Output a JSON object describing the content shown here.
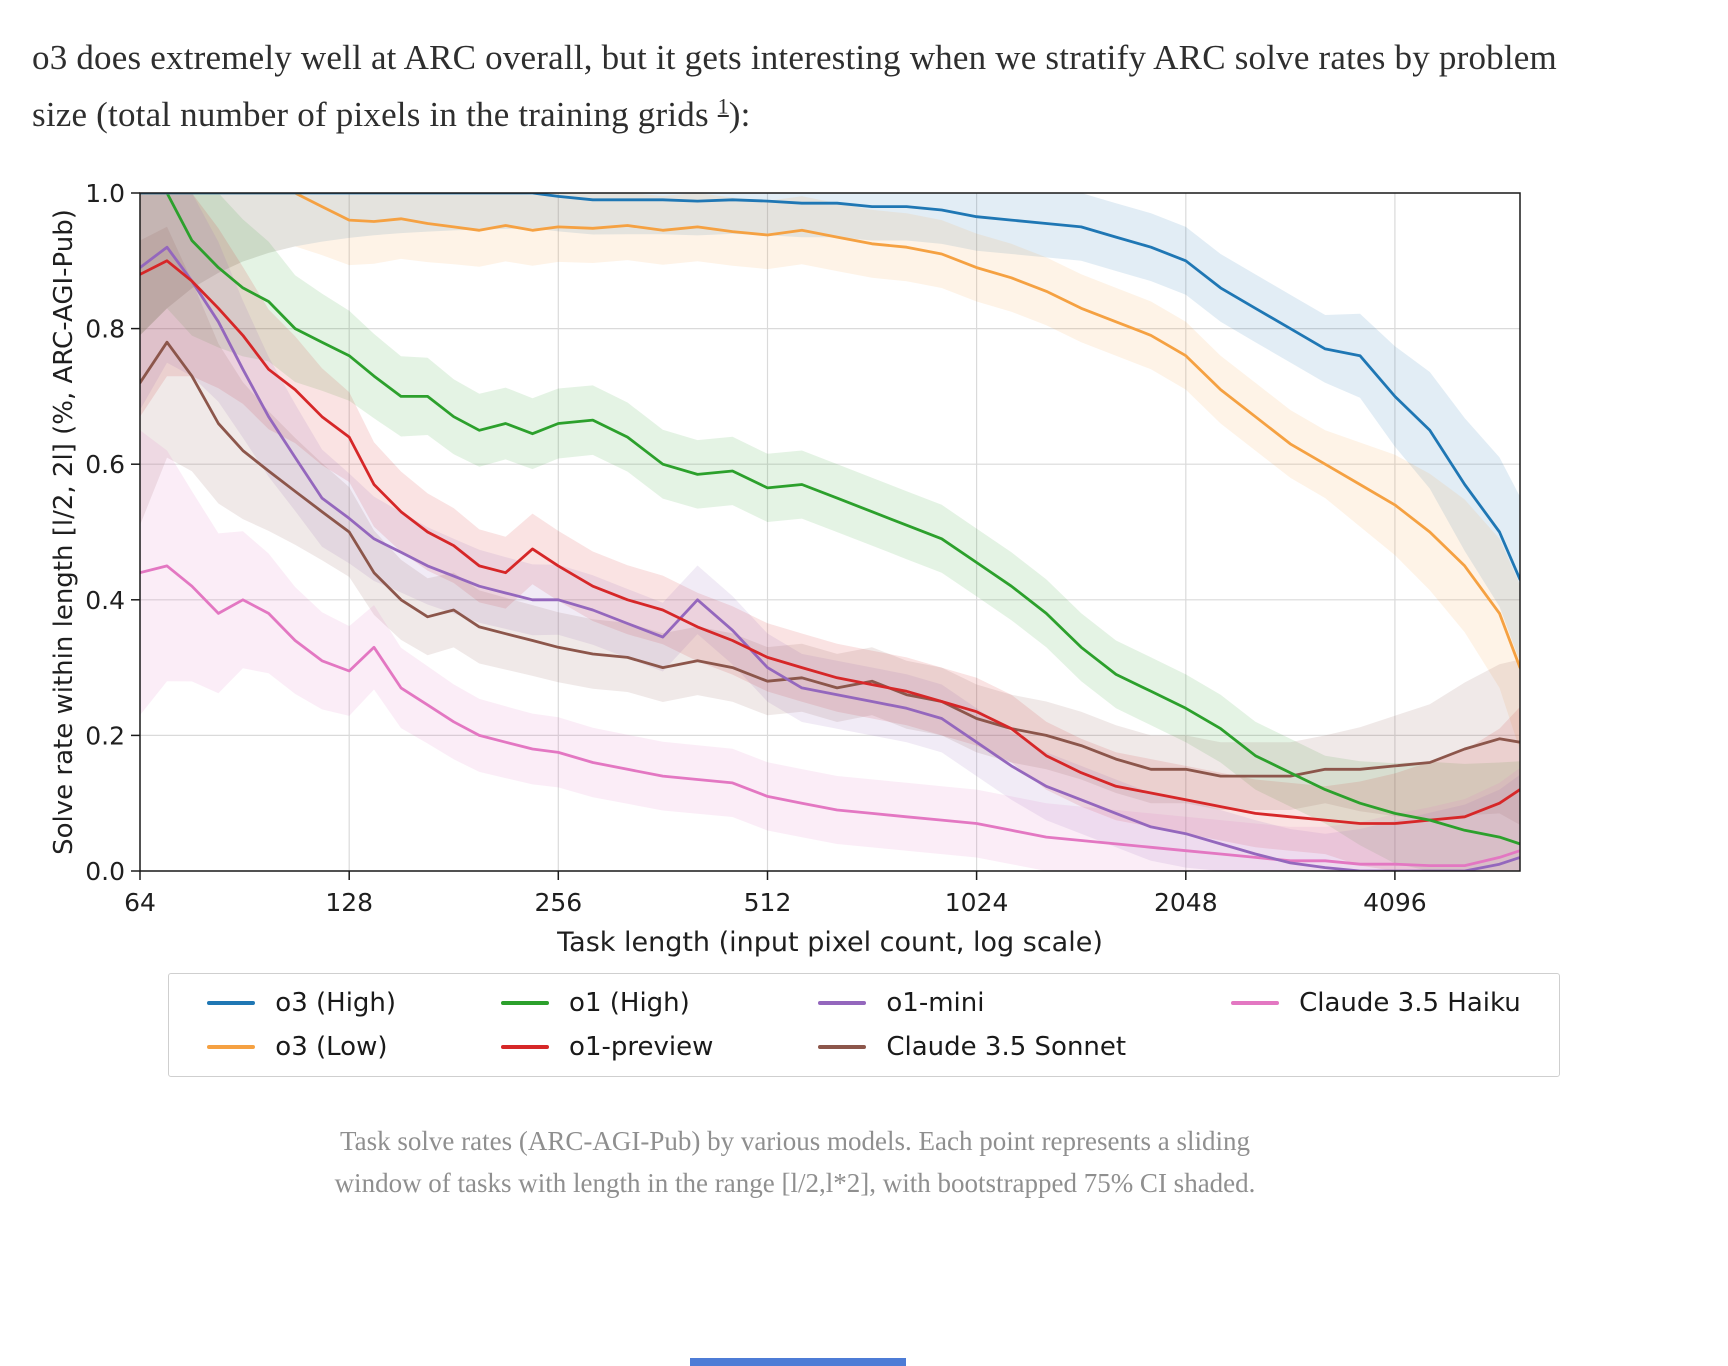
{
  "intro": {
    "text_before": "o3 does extremely well at ARC overall, but it gets interesting when we stratify ARC solve rates by problem size (total number of pixels in the training grids ",
    "footnote_label": "1",
    "text_after": "):"
  },
  "chart_data": {
    "type": "line",
    "title": "",
    "xlabel": "Task length (input pixel count, log scale)",
    "ylabel": "Solve rate within length [l/2, 2l] (%, ARC-AGI-Pub)",
    "x_scale": "log",
    "xlim": [
      64,
      6200
    ],
    "ylim": [
      0.0,
      1.0
    ],
    "xticks": [
      64,
      128,
      256,
      512,
      1024,
      2048,
      4096
    ],
    "yticks": [
      0.0,
      0.2,
      0.4,
      0.6,
      0.8,
      1.0
    ],
    "grid": true,
    "legend_position": "below, 2 rows column-major",
    "ci_note": "bootstrapped 75% CI shaded around each line",
    "x": [
      64,
      70,
      76,
      83,
      90,
      98,
      107,
      117,
      128,
      139,
      152,
      166,
      181,
      197,
      215,
      235,
      256,
      287,
      322,
      362,
      406,
      456,
      512,
      574,
      645,
      724,
      812,
      912,
      1024,
      1149,
      1290,
      1448,
      1625,
      1825,
      2048,
      2299,
      2580,
      2896,
      3251,
      3649,
      4096,
      4598,
      5161,
      5793,
      6200
    ],
    "series": [
      {
        "name": "o3 (High)",
        "color": "#1f77b4",
        "values": [
          1.0,
          1.0,
          1.0,
          1.0,
          1.0,
          1.0,
          1.0,
          1.0,
          1.0,
          1.0,
          1.0,
          1.0,
          1.0,
          1.0,
          1.0,
          1.0,
          0.995,
          0.99,
          0.99,
          0.99,
          0.988,
          0.99,
          0.988,
          0.985,
          0.985,
          0.98,
          0.98,
          0.975,
          0.965,
          0.96,
          0.955,
          0.95,
          0.935,
          0.92,
          0.9,
          0.86,
          0.83,
          0.8,
          0.77,
          0.76,
          0.7,
          0.65,
          0.57,
          0.5,
          0.43
        ]
      },
      {
        "name": "o3 (Low)",
        "color": "#f5a142",
        "values": [
          1.0,
          1.0,
          1.0,
          1.0,
          1.0,
          1.0,
          1.0,
          0.98,
          0.96,
          0.958,
          0.962,
          0.955,
          0.95,
          0.945,
          0.952,
          0.945,
          0.95,
          0.948,
          0.952,
          0.945,
          0.95,
          0.943,
          0.938,
          0.945,
          0.935,
          0.925,
          0.92,
          0.91,
          0.89,
          0.875,
          0.855,
          0.83,
          0.81,
          0.79,
          0.76,
          0.71,
          0.67,
          0.63,
          0.6,
          0.57,
          0.54,
          0.5,
          0.45,
          0.38,
          0.3
        ]
      },
      {
        "name": "o1 (High)",
        "color": "#2ca02c",
        "values": [
          1.0,
          1.0,
          0.93,
          0.89,
          0.86,
          0.84,
          0.8,
          0.78,
          0.76,
          0.73,
          0.7,
          0.7,
          0.67,
          0.65,
          0.66,
          0.645,
          0.66,
          0.665,
          0.64,
          0.6,
          0.585,
          0.59,
          0.565,
          0.57,
          0.55,
          0.53,
          0.51,
          0.49,
          0.455,
          0.42,
          0.38,
          0.33,
          0.29,
          0.265,
          0.24,
          0.21,
          0.17,
          0.145,
          0.12,
          0.1,
          0.085,
          0.075,
          0.06,
          0.05,
          0.04
        ]
      },
      {
        "name": "o1-preview",
        "color": "#d62728",
        "values": [
          0.88,
          0.9,
          0.87,
          0.83,
          0.79,
          0.74,
          0.71,
          0.67,
          0.64,
          0.57,
          0.53,
          0.5,
          0.48,
          0.45,
          0.44,
          0.475,
          0.45,
          0.42,
          0.4,
          0.385,
          0.36,
          0.34,
          0.315,
          0.3,
          0.285,
          0.275,
          0.265,
          0.25,
          0.235,
          0.21,
          0.17,
          0.145,
          0.125,
          0.115,
          0.105,
          0.095,
          0.085,
          0.08,
          0.075,
          0.07,
          0.07,
          0.075,
          0.08,
          0.1,
          0.12
        ]
      },
      {
        "name": "o1-mini",
        "color": "#9467bd",
        "values": [
          0.89,
          0.92,
          0.87,
          0.81,
          0.74,
          0.67,
          0.61,
          0.55,
          0.52,
          0.49,
          0.47,
          0.45,
          0.435,
          0.42,
          0.41,
          0.4,
          0.4,
          0.385,
          0.365,
          0.345,
          0.4,
          0.355,
          0.3,
          0.27,
          0.26,
          0.25,
          0.24,
          0.225,
          0.19,
          0.155,
          0.125,
          0.105,
          0.085,
          0.065,
          0.055,
          0.04,
          0.025,
          0.012,
          0.005,
          0.0,
          0.0,
          0.0,
          0.0,
          0.01,
          0.02
        ]
      },
      {
        "name": "Claude 3.5 Sonnet",
        "color": "#8c564b",
        "values": [
          0.72,
          0.78,
          0.73,
          0.66,
          0.62,
          0.59,
          0.56,
          0.53,
          0.5,
          0.44,
          0.4,
          0.375,
          0.385,
          0.36,
          0.35,
          0.34,
          0.33,
          0.32,
          0.315,
          0.3,
          0.31,
          0.3,
          0.28,
          0.285,
          0.27,
          0.28,
          0.26,
          0.25,
          0.225,
          0.21,
          0.2,
          0.185,
          0.165,
          0.15,
          0.15,
          0.14,
          0.14,
          0.14,
          0.15,
          0.15,
          0.155,
          0.16,
          0.18,
          0.195,
          0.19
        ]
      },
      {
        "name": "Claude 3.5 Haiku",
        "color": "#e377c2",
        "values": [
          0.44,
          0.45,
          0.42,
          0.38,
          0.4,
          0.38,
          0.34,
          0.31,
          0.295,
          0.33,
          0.27,
          0.245,
          0.22,
          0.2,
          0.19,
          0.18,
          0.175,
          0.16,
          0.15,
          0.14,
          0.135,
          0.13,
          0.11,
          0.1,
          0.09,
          0.085,
          0.08,
          0.075,
          0.07,
          0.06,
          0.05,
          0.045,
          0.04,
          0.035,
          0.03,
          0.025,
          0.02,
          0.015,
          0.015,
          0.01,
          0.01,
          0.008,
          0.008,
          0.02,
          0.03
        ]
      }
    ]
  },
  "caption": {
    "line1": "Task solve rates (ARC-AGI-Pub) by various models. Each point represents a sliding",
    "line2": "window of tasks with length in the range [l/2,l*2], with bootstrapped 75% CI shaded."
  }
}
